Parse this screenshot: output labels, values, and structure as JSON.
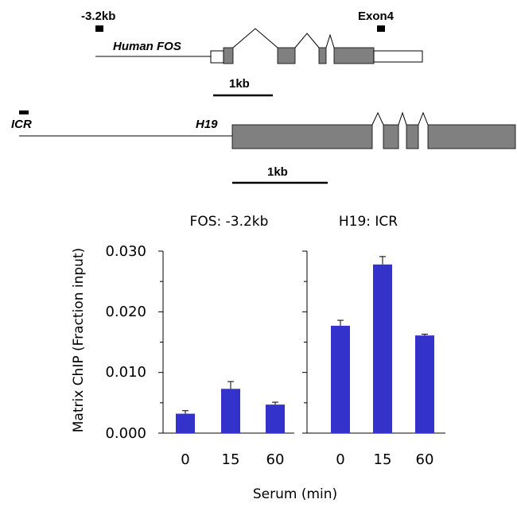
{
  "diagram": {
    "fos": {
      "marker_left": "-3.2kb",
      "marker_right": "Exon4",
      "gene_label": "Human FOS",
      "scale_label": "1kb"
    },
    "h19": {
      "marker_label": "ICR",
      "gene_label": "H19",
      "scale_label": "1kb"
    }
  },
  "chart": {
    "ylabel": "Matrix ChIP (Fraction input)",
    "xlabel": "Serum (min)",
    "yticks": [
      "0.000",
      "0.010",
      "0.020",
      "0.030"
    ],
    "bar_color": "#3333cc"
  },
  "chart_data": [
    {
      "type": "bar",
      "title": "FOS: -3.2kb",
      "categories": [
        "0",
        "15",
        "60"
      ],
      "values": [
        0.0032,
        0.0073,
        0.0047
      ],
      "errors": [
        0.0005,
        0.0012,
        0.0004
      ],
      "xlabel": "Serum (min)",
      "ylabel": "Matrix ChIP (Fraction input)",
      "ylim": [
        0,
        0.03
      ]
    },
    {
      "type": "bar",
      "title": "H19: ICR",
      "categories": [
        "0",
        "15",
        "60"
      ],
      "values": [
        0.0177,
        0.0278,
        0.0161
      ],
      "errors": [
        0.0009,
        0.0013,
        0.0002
      ],
      "xlabel": "Serum (min)",
      "ylabel": "Matrix ChIP (Fraction input)",
      "ylim": [
        0,
        0.03
      ]
    }
  ]
}
